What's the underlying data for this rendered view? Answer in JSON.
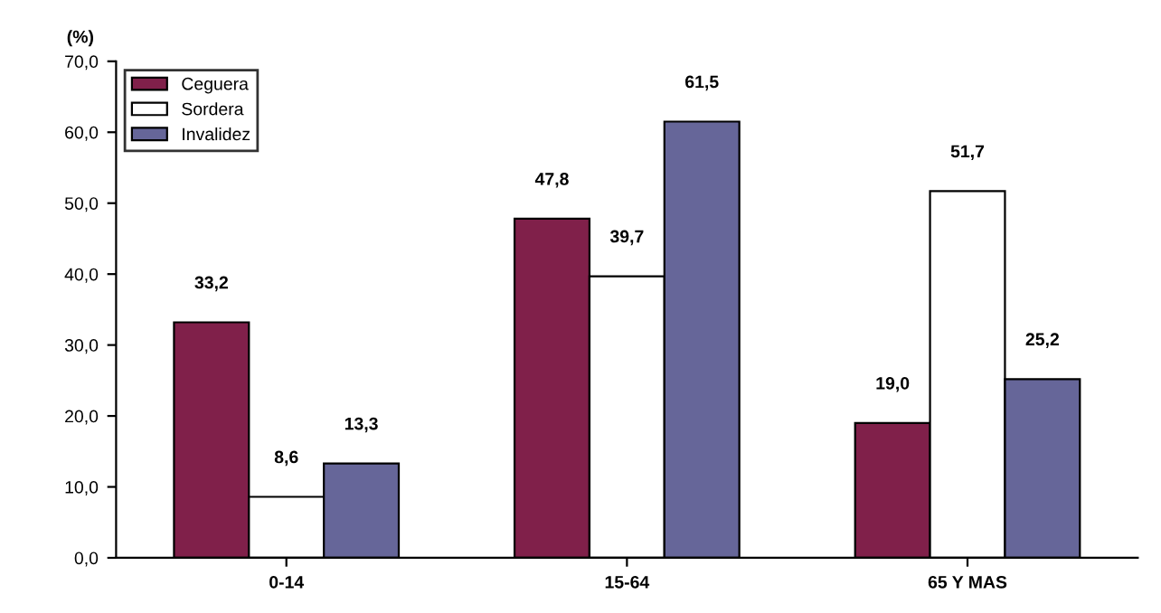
{
  "chart_data": {
    "type": "bar",
    "ylabel": "(%)",
    "categories": [
      "0-14",
      "15-64",
      "65 Y MAS"
    ],
    "series": [
      {
        "name": "Ceguera",
        "color": "#80204a",
        "values": [
          33.2,
          47.8,
          19.0
        ],
        "value_labels": [
          "33,2",
          "47,8",
          "19,0"
        ]
      },
      {
        "name": "Sordera",
        "color": "#ffffff",
        "values": [
          8.6,
          39.7,
          51.7
        ],
        "value_labels": [
          "8,6",
          "39,7",
          "51,7"
        ]
      },
      {
        "name": "Invalidez",
        "color": "#666699",
        "values": [
          13.3,
          61.5,
          25.2
        ],
        "value_labels": [
          "13,3",
          "61,5",
          "25,2"
        ]
      }
    ],
    "ylim": [
      0,
      70
    ],
    "yticks": [
      {
        "value": 0,
        "label": "0,0"
      },
      {
        "value": 10,
        "label": "10,0"
      },
      {
        "value": 20,
        "label": "20,0"
      },
      {
        "value": 30,
        "label": "30,0"
      },
      {
        "value": 40,
        "label": "40,0"
      },
      {
        "value": 50,
        "label": "50,0"
      },
      {
        "value": 60,
        "label": "60,0"
      },
      {
        "value": 70,
        "label": "70,0"
      }
    ],
    "legend": "top left",
    "grid": false
  }
}
